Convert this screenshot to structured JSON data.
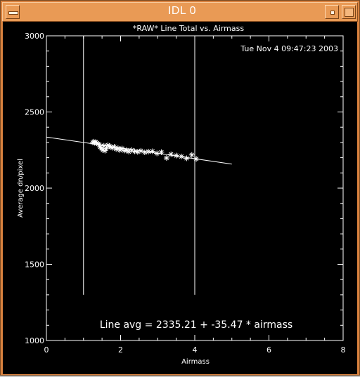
{
  "window": {
    "title": "IDL 0"
  },
  "chart_data": {
    "type": "scatter",
    "title": "*RAW* Line Total vs. Airmass",
    "timestamp": "Tue Nov  4 09:47:23 2003",
    "xlabel": "Airmass",
    "ylabel": "Average dn/pixel",
    "xlim": [
      0,
      8
    ],
    "ylim": [
      1000,
      3000
    ],
    "xticks": [
      0,
      2,
      4,
      6,
      8
    ],
    "yticks": [
      1000,
      1500,
      2000,
      2500,
      3000
    ],
    "xtick_labels": [
      "0",
      "2",
      "4",
      "6",
      "8"
    ],
    "ytick_labels": [
      "1000",
      "1500",
      "2000",
      "2500",
      "3000"
    ],
    "grid": false,
    "points": [
      [
        1.25,
        2300
      ],
      [
        1.28,
        2305
      ],
      [
        1.3,
        2298
      ],
      [
        1.33,
        2302
      ],
      [
        1.36,
        2296
      ],
      [
        1.4,
        2290
      ],
      [
        1.43,
        2284
      ],
      [
        1.45,
        2270
      ],
      [
        1.48,
        2262
      ],
      [
        1.52,
        2250
      ],
      [
        1.55,
        2278
      ],
      [
        1.58,
        2246
      ],
      [
        1.62,
        2262
      ],
      [
        1.66,
        2282
      ],
      [
        1.7,
        2276
      ],
      [
        1.74,
        2270
      ],
      [
        1.78,
        2265
      ],
      [
        1.83,
        2272
      ],
      [
        1.88,
        2257
      ],
      [
        1.93,
        2262
      ],
      [
        1.98,
        2250
      ],
      [
        2.04,
        2260
      ],
      [
        2.1,
        2247
      ],
      [
        2.16,
        2250
      ],
      [
        2.22,
        2240
      ],
      [
        2.3,
        2250
      ],
      [
        2.38,
        2242
      ],
      [
        2.46,
        2238
      ],
      [
        2.55,
        2245
      ],
      [
        2.65,
        2235
      ],
      [
        2.75,
        2240
      ],
      [
        2.86,
        2242
      ],
      [
        2.98,
        2228
      ],
      [
        3.1,
        2236
      ],
      [
        3.24,
        2198
      ],
      [
        3.36,
        2222
      ],
      [
        3.5,
        2214
      ],
      [
        3.64,
        2208
      ],
      [
        3.78,
        2196
      ],
      [
        3.92,
        2218
      ],
      [
        4.04,
        2192
      ]
    ],
    "fit": {
      "intercept": 2335.21,
      "slope": -35.47,
      "x_range": [
        0,
        5
      ],
      "label": "Line avg = 2335.21 + -35.47 * airmass"
    },
    "vertical_lines": [
      {
        "x": 1.0,
        "y_from": 1300,
        "y_to": 3000
      },
      {
        "x": 4.0,
        "y_from": 1300,
        "y_to": 3000
      }
    ],
    "colors": {
      "background": "#000000",
      "foreground": "#ffffff"
    }
  }
}
